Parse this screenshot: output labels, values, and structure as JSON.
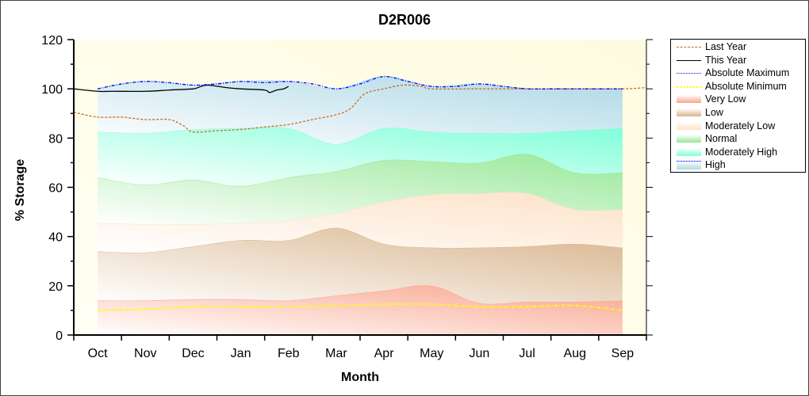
{
  "chart_data": {
    "type": "area",
    "title": "D2R006",
    "xlabel": "Month",
    "ylabel": "% Storage",
    "categories": [
      "Oct",
      "Nov",
      "Dec",
      "Jan",
      "Feb",
      "Mar",
      "Apr",
      "May",
      "Jun",
      "Jul",
      "Aug",
      "Sep"
    ],
    "ylim": [
      0,
      120
    ],
    "yticks": [
      0,
      20,
      40,
      60,
      80,
      100,
      120
    ],
    "grid": false,
    "legend_position": "right",
    "bands": [
      {
        "name": "Very Low",
        "color": "#f9a48c",
        "upper": [
          14,
          14,
          14.5,
          14.5,
          14,
          16,
          18,
          20,
          13,
          13.5,
          13.5,
          14
        ]
      },
      {
        "name": "Low",
        "color": "#d8b48c",
        "upper": [
          34,
          33.5,
          36,
          38.5,
          38.5,
          43.5,
          37,
          35.5,
          35.5,
          36,
          37,
          35.5
        ]
      },
      {
        "name": "Moderately Low",
        "color": "#fde2c8",
        "upper": [
          45.5,
          45,
          45,
          45.5,
          46.5,
          49.5,
          54,
          57,
          57.5,
          57.5,
          51,
          51
        ]
      },
      {
        "name": "Normal",
        "color": "#98e898",
        "upper": [
          64,
          61,
          63,
          60.5,
          64,
          66.5,
          71,
          70.5,
          70,
          73.5,
          66,
          66
        ]
      },
      {
        "name": "Moderately High",
        "color": "#80ffd8",
        "upper": [
          82.5,
          82,
          83.5,
          84,
          84,
          77.5,
          84,
          82.5,
          82,
          82,
          83,
          84
        ]
      },
      {
        "name": "High",
        "color": "#add8e6",
        "upper": [
          100,
          103,
          101.5,
          103,
          103,
          100,
          105,
          101,
          102,
          100,
          100,
          100
        ]
      }
    ],
    "lines": [
      {
        "name": "Last Year",
        "color": "#d2691e",
        "style": "dashed",
        "x": [
          -0.5,
          0,
          0.5,
          1,
          1.5,
          1.8,
          2,
          2.5,
          3,
          3.5,
          4,
          4.5,
          5,
          5.3,
          5.6,
          6,
          6.4,
          6.8,
          7,
          8,
          9,
          10,
          11,
          11.5
        ],
        "y": [
          90.5,
          88.5,
          88.5,
          87.5,
          87.5,
          85,
          82.5,
          83,
          83.5,
          84.5,
          85.5,
          87.5,
          89.5,
          92,
          98,
          100,
          101.5,
          101,
          100,
          100,
          100,
          100,
          100,
          100.5
        ]
      },
      {
        "name": "This Year",
        "color": "#000000",
        "style": "solid",
        "x": [
          -0.5,
          0,
          0.3,
          1,
          1.5,
          2,
          2.1,
          2.3,
          2.7,
          3,
          3.5,
          3.6,
          3.75,
          3.9,
          4.0
        ],
        "y": [
          100,
          99,
          99,
          99,
          99.5,
          100,
          100.5,
          101.5,
          100.5,
          100,
          99.5,
          98.5,
          99.5,
          100,
          101
        ]
      },
      {
        "name": "Absolute Maximum",
        "color": "#0000ff",
        "style": "dash-dot",
        "x": [
          0,
          0.5,
          1,
          1.5,
          2,
          2.5,
          3,
          3.5,
          4,
          4.5,
          5,
          5.5,
          6,
          6.5,
          7,
          7.5,
          8,
          8.5,
          9,
          9.5,
          10,
          10.5,
          11
        ],
        "y": [
          100,
          102,
          103,
          102.5,
          101.5,
          102,
          103,
          102.5,
          103,
          102,
          100,
          102,
          105,
          103,
          101,
          101,
          102,
          101,
          100,
          100,
          100,
          100,
          100
        ]
      },
      {
        "name": "Absolute Minimum",
        "color": "#ffff00",
        "style": "dash-dot",
        "x": [
          0,
          1,
          2,
          3,
          4,
          5,
          6,
          7,
          8,
          9,
          10,
          11
        ],
        "y": [
          10,
          10.5,
          11.5,
          11.5,
          11.5,
          12,
          12.5,
          12.5,
          11.5,
          11.5,
          12,
          10
        ]
      }
    ],
    "legend": [
      "Last Year",
      "This Year",
      "Absolute Maximum",
      "Absolute Minimum",
      "Very Low",
      "Low",
      "Moderately Low",
      "Normal",
      "Moderately High",
      "High"
    ]
  }
}
